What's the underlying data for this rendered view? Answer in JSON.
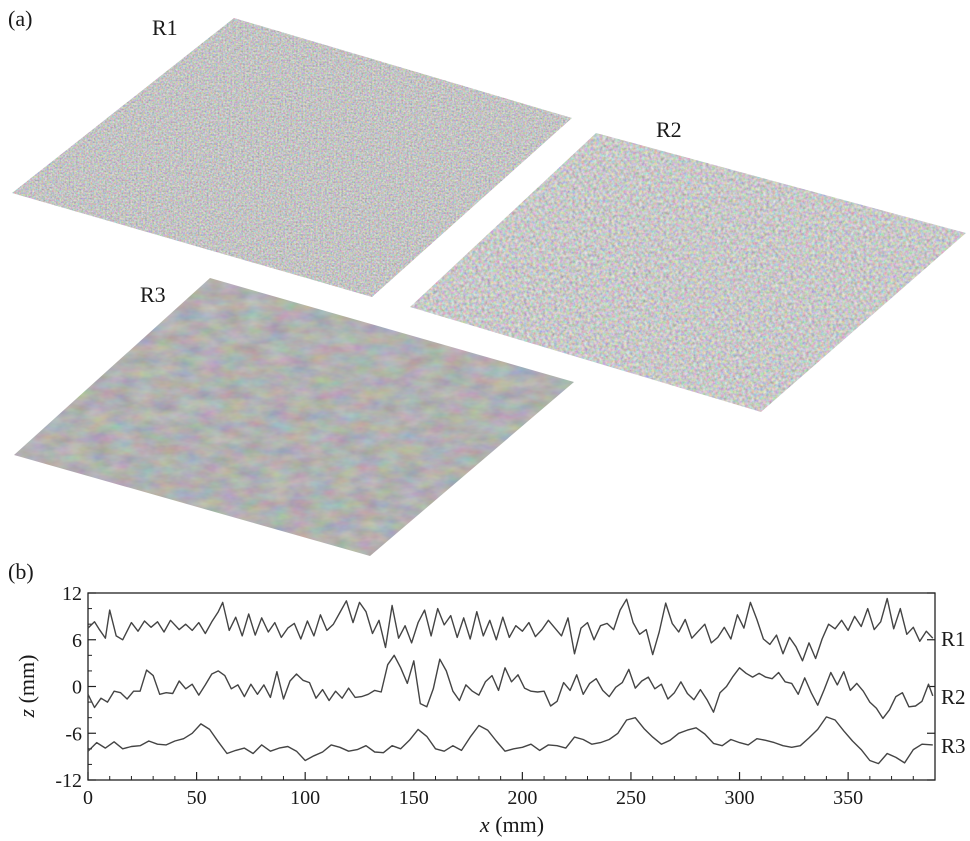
{
  "panel_a": {
    "label": "(a)",
    "surfaces": [
      {
        "id": "R1",
        "label": "R1"
      },
      {
        "id": "R2",
        "label": "R2"
      },
      {
        "id": "R3",
        "label": "R3"
      }
    ]
  },
  "panel_b": {
    "label": "(b)"
  },
  "chart_data": {
    "type": "line",
    "title": "",
    "xlabel_var": "x",
    "xlabel_unit": " (mm)",
    "ylabel_var": "z",
    "ylabel_unit": " (mm)",
    "xlim": [
      0,
      390
    ],
    "ylim": [
      -12,
      12
    ],
    "xticks": [
      0,
      50,
      100,
      150,
      200,
      250,
      300,
      350
    ],
    "yticks": [
      12,
      6,
      0,
      -6,
      -12
    ],
    "grid": false,
    "line_color": "#444444",
    "series": [
      {
        "name": "R1",
        "x": [
          0,
          3,
          5,
          8,
          10,
          13,
          16,
          20,
          23,
          26,
          29,
          32,
          35,
          38,
          42,
          45,
          48,
          51,
          54,
          57,
          60,
          62,
          65,
          68,
          71,
          74,
          77,
          80,
          83,
          86,
          89,
          92,
          95,
          98,
          101,
          104,
          107,
          110,
          113,
          116,
          119,
          122,
          125,
          128,
          131,
          134,
          137,
          140,
          143,
          146,
          149,
          152,
          155,
          158,
          161,
          164,
          167,
          170,
          173,
          176,
          179,
          182,
          185,
          188,
          191,
          194,
          197,
          200,
          203,
          206,
          209,
          212,
          215,
          218,
          221,
          224,
          227,
          230,
          233,
          236,
          239,
          242,
          245,
          248,
          251,
          254,
          257,
          260,
          263,
          266,
          269,
          272,
          275,
          278,
          281,
          284,
          287,
          290,
          293,
          296,
          299,
          302,
          305,
          308,
          311,
          314,
          317,
          320,
          323,
          326,
          329,
          332,
          335,
          338,
          341,
          344,
          347,
          350,
          353,
          356,
          359,
          362,
          365,
          368,
          371,
          374,
          377,
          380,
          383,
          386,
          389
        ],
        "values": [
          7.5,
          8.3,
          7.4,
          6.2,
          9.8,
          6.5,
          6.0,
          8.2,
          7.1,
          8.4,
          7.6,
          8.3,
          7.0,
          8.5,
          7.3,
          8.0,
          7.2,
          8.2,
          6.8,
          8.3,
          9.6,
          10.8,
          7.2,
          8.9,
          6.5,
          9.3,
          6.6,
          8.8,
          7.0,
          8.2,
          6.3,
          7.5,
          8.1,
          6.1,
          8.4,
          6.5,
          9.2,
          7.2,
          8.0,
          9.5,
          11.0,
          8.2,
          10.8,
          9.6,
          6.8,
          8.5,
          5.0,
          10.4,
          6.2,
          7.8,
          5.6,
          8.2,
          9.8,
          6.5,
          10.0,
          7.9,
          9.1,
          6.3,
          8.8,
          6.1,
          9.6,
          6.5,
          8.5,
          6.0,
          8.9,
          6.3,
          7.8,
          7.1,
          8.2,
          6.4,
          7.3,
          8.5,
          7.5,
          6.5,
          8.8,
          4.2,
          7.5,
          8.2,
          6.0,
          7.8,
          8.1,
          7.3,
          9.8,
          11.2,
          8.2,
          6.7,
          7.3,
          4.1,
          7.0,
          10.7,
          8.1,
          7.0,
          8.6,
          6.2,
          7.1,
          8.0,
          5.6,
          6.3,
          7.6,
          6.1,
          9.2,
          7.5,
          10.8,
          8.6,
          6.1,
          5.4,
          6.6,
          4.2,
          6.3,
          5.1,
          3.3,
          5.6,
          3.6,
          6.1,
          8.0,
          7.4,
          8.5,
          7.2,
          9.0,
          7.7,
          10.0,
          7.3,
          8.3,
          11.3,
          7.4,
          10.0,
          6.7,
          7.6,
          5.8,
          7.1,
          6.2
        ]
      },
      {
        "name": "R2",
        "x": [
          0,
          3,
          6,
          9,
          12,
          15,
          18,
          21,
          24,
          27,
          30,
          33,
          36,
          39,
          42,
          45,
          48,
          51,
          54,
          57,
          60,
          63,
          66,
          69,
          72,
          75,
          78,
          81,
          84,
          87,
          90,
          93,
          96,
          99,
          102,
          105,
          108,
          111,
          114,
          117,
          120,
          123,
          126,
          129,
          132,
          135,
          138,
          141,
          144,
          147,
          150,
          153,
          156,
          159,
          162,
          165,
          168,
          171,
          174,
          177,
          180,
          183,
          186,
          189,
          192,
          195,
          198,
          201,
          204,
          207,
          210,
          213,
          216,
          219,
          222,
          225,
          228,
          231,
          234,
          237,
          240,
          243,
          246,
          249,
          252,
          255,
          258,
          261,
          264,
          267,
          270,
          273,
          276,
          279,
          282,
          285,
          288,
          291,
          294,
          297,
          300,
          303,
          306,
          309,
          312,
          315,
          318,
          321,
          324,
          327,
          330,
          333,
          336,
          339,
          342,
          345,
          348,
          351,
          354,
          357,
          360,
          363,
          366,
          369,
          372,
          375,
          378,
          381,
          384,
          387,
          389
        ],
        "values": [
          -1.0,
          -2.7,
          -1.5,
          -2.0,
          -0.6,
          -0.8,
          -1.6,
          -0.6,
          -0.6,
          2.1,
          1.4,
          -1.0,
          -0.8,
          -0.9,
          0.7,
          -0.3,
          0.3,
          -1.1,
          0.2,
          1.6,
          2.0,
          1.4,
          -0.3,
          0.2,
          -1.3,
          0.3,
          -1.0,
          0.2,
          -1.4,
          1.9,
          -1.6,
          0.7,
          1.6,
          0.8,
          0.5,
          -1.5,
          -0.4,
          -1.8,
          -0.6,
          -1.5,
          -0.2,
          -1.4,
          -1.3,
          -1.0,
          -0.5,
          -0.7,
          2.8,
          4.0,
          2.4,
          0.4,
          3.3,
          -2.2,
          -2.6,
          -0.3,
          3.5,
          2.0,
          -0.6,
          -1.8,
          0.2,
          -0.6,
          -1.1,
          0.6,
          1.4,
          -0.5,
          2.4,
          0.6,
          1.5,
          -0.2,
          -0.6,
          -0.7,
          -0.6,
          -2.5,
          -1.9,
          0.5,
          -0.5,
          1.5,
          -1.0,
          0.4,
          1.0,
          -0.5,
          -1.3,
          -0.1,
          0.5,
          2.2,
          -0.2,
          0.7,
          1.2,
          -0.3,
          0.3,
          -1.6,
          -0.8,
          0.6,
          -0.9,
          -1.7,
          -0.4,
          -1.7,
          -3.3,
          -0.8,
          0.0,
          1.3,
          2.4,
          1.7,
          1.2,
          1.7,
          1.2,
          1.0,
          1.8,
          0.6,
          0.4,
          -1.0,
          1.1,
          -0.8,
          -2.4,
          -0.4,
          1.8,
          0.2,
          1.9,
          -0.5,
          0.4,
          -0.6,
          -2.0,
          -2.8,
          -4.1,
          -3.0,
          -1.3,
          -0.8,
          -2.6,
          -2.5,
          -1.9,
          0.3,
          -1.2
        ]
      },
      {
        "name": "R3",
        "x": [
          0,
          4,
          8,
          12,
          16,
          20,
          24,
          28,
          32,
          36,
          40,
          44,
          48,
          52,
          56,
          60,
          64,
          68,
          72,
          76,
          80,
          84,
          88,
          92,
          96,
          100,
          104,
          108,
          112,
          116,
          120,
          124,
          128,
          132,
          136,
          140,
          144,
          148,
          152,
          156,
          160,
          164,
          168,
          172,
          176,
          180,
          184,
          188,
          192,
          196,
          200,
          204,
          208,
          212,
          216,
          220,
          224,
          228,
          232,
          236,
          240,
          244,
          248,
          252,
          256,
          260,
          264,
          268,
          272,
          276,
          280,
          284,
          288,
          292,
          296,
          300,
          304,
          308,
          312,
          316,
          320,
          324,
          328,
          332,
          336,
          340,
          344,
          348,
          352,
          356,
          360,
          364,
          368,
          372,
          376,
          380,
          384,
          389
        ],
        "values": [
          -8.3,
          -7.2,
          -7.9,
          -7.1,
          -8.0,
          -7.7,
          -7.6,
          -7.0,
          -7.4,
          -7.5,
          -7.0,
          -6.7,
          -6.0,
          -4.8,
          -5.5,
          -7.1,
          -8.6,
          -8.2,
          -7.9,
          -8.6,
          -7.5,
          -8.3,
          -7.9,
          -7.7,
          -8.3,
          -9.5,
          -8.9,
          -8.4,
          -7.5,
          -7.8,
          -8.3,
          -8.1,
          -7.6,
          -8.4,
          -8.5,
          -7.6,
          -8.0,
          -6.9,
          -5.5,
          -6.4,
          -8.0,
          -8.3,
          -7.6,
          -8.2,
          -6.5,
          -5.0,
          -5.6,
          -7.0,
          -8.3,
          -8.0,
          -7.8,
          -7.4,
          -8.2,
          -7.5,
          -7.6,
          -7.9,
          -6.5,
          -6.8,
          -7.4,
          -7.2,
          -6.8,
          -6.0,
          -4.3,
          -4.0,
          -5.4,
          -6.5,
          -7.4,
          -6.9,
          -6.0,
          -5.6,
          -5.3,
          -6.1,
          -7.3,
          -7.6,
          -6.8,
          -7.2,
          -7.5,
          -6.7,
          -6.9,
          -7.2,
          -7.6,
          -7.8,
          -7.6,
          -6.6,
          -5.5,
          -3.9,
          -4.3,
          -5.7,
          -7.0,
          -8.1,
          -9.5,
          -9.9,
          -8.6,
          -9.1,
          -9.8,
          -8.1,
          -7.4,
          -7.5
        ]
      }
    ]
  }
}
